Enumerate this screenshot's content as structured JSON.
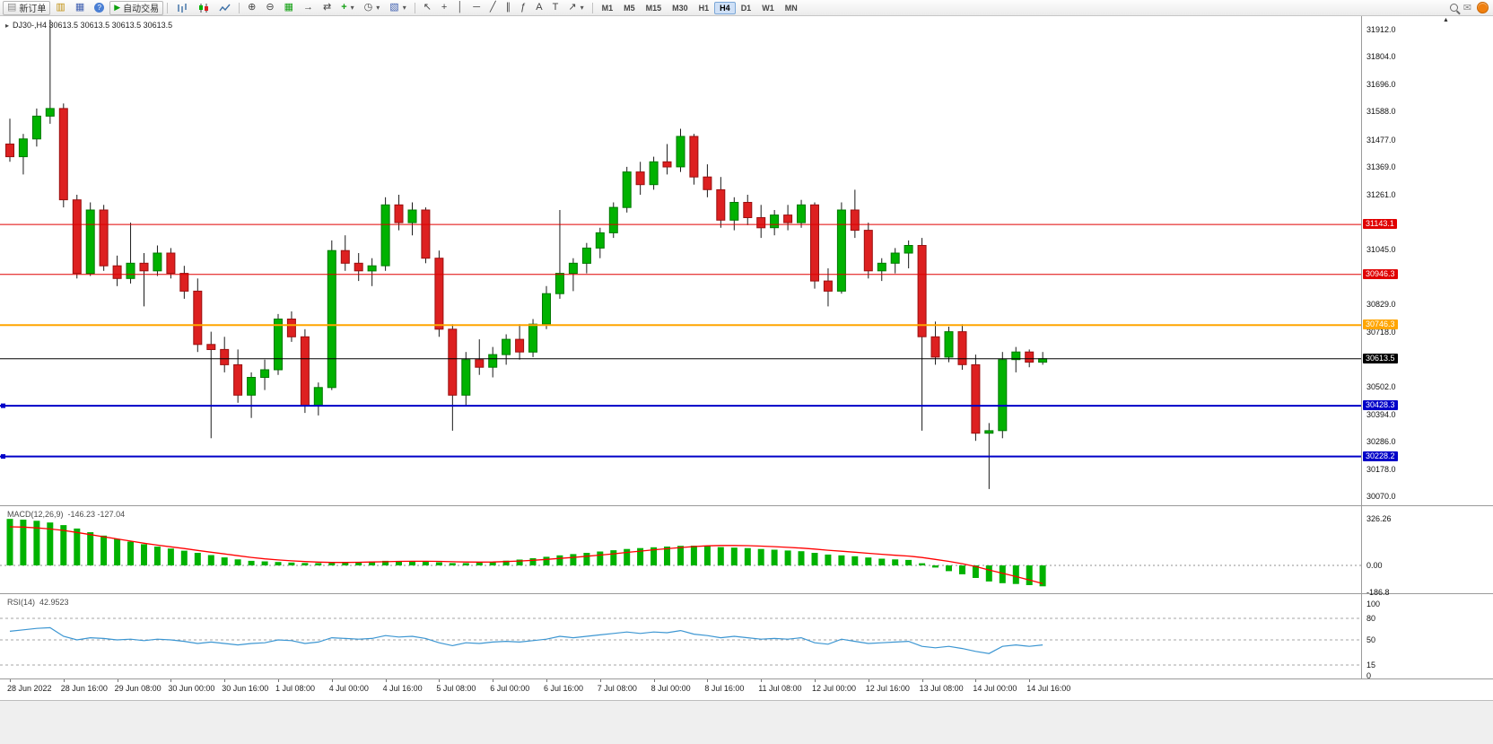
{
  "toolbar": {
    "new_order_label": "新订单",
    "auto_trading_label": "自动交易",
    "timeframes": [
      "M1",
      "M5",
      "M15",
      "M30",
      "H1",
      "H4",
      "D1",
      "W1",
      "MN"
    ],
    "active_timeframe": "H4"
  },
  "icons": {
    "title_marker": "▸",
    "new_order": "▤",
    "market_watch": "▥",
    "navigator": "▦",
    "help": "?",
    "auto_play": "▶",
    "zoom_in": "⊕",
    "zoom_out": "⊖",
    "tile_windows": "▦",
    "auto_scroll": "→",
    "chart_shift": "⇄",
    "indicators_plus": "+",
    "periods_clock": "◷",
    "templates": "▧",
    "dropdown_caret": "▾",
    "cursor": "↖",
    "crosshair": "+",
    "vertical_line": "│",
    "horizontal_line": "─",
    "trendline": "╱",
    "channel": "∥",
    "fibonacci": "ƒ",
    "text_tool": "A",
    "label_tool": "T",
    "arrows_tool": "↗",
    "envelope": "✉",
    "scroll_marker": "▲"
  },
  "chart": {
    "symbol": "DJ30-",
    "period": "H4",
    "title": "DJ30-,H4  30613.5 30613.5 30613.5 30613.5"
  },
  "colors": {
    "up": "#00b200",
    "up_border": "#007800",
    "down": "#dd2020",
    "down_border": "#9a1010",
    "wick": "#1a1a1a",
    "macd_bar": "#00b200",
    "macd_signal": "#ff0000",
    "rsi_line": "#3c96d2",
    "level_red": "#e00000",
    "level_orange": "#ffa500",
    "level_blue": "#0000c8",
    "level_black": "#000000"
  },
  "chart_data": {
    "type": "candlestick",
    "symbol": "DJ30-",
    "period": "H4",
    "price_range": {
      "max": 31950,
      "min": 30050
    },
    "price_axis_ticks": [
      "31912.0",
      "31804.0",
      "31696.0",
      "31588.0",
      "31477.0",
      "31369.0",
      "31261.0",
      "31045.0",
      "30829.0",
      "30718.0",
      "30502.0",
      "30394.0",
      "30286.0",
      "30178.0",
      "30070.0"
    ],
    "levels": [
      {
        "price": 31143.1,
        "badge": "31143.1",
        "color": "#e00000",
        "width": 1,
        "marker": false
      },
      {
        "price": 30946.3,
        "badge": "30946.3",
        "color": "#e00000",
        "width": 1,
        "marker": false
      },
      {
        "price": 30746.3,
        "badge": "30746.3",
        "color": "#ffa500",
        "width": 2,
        "marker": false
      },
      {
        "price": 30613.5,
        "badge": "30613.5",
        "color": "#000000",
        "width": 1,
        "marker": false
      },
      {
        "price": 30428.3,
        "badge": "30428.3",
        "color": "#0000c8",
        "width": 2,
        "marker": true
      },
      {
        "price": 30228.2,
        "badge": "30228.2",
        "color": "#0000c8",
        "width": 2,
        "marker": true
      }
    ],
    "candles": [
      [
        31460,
        31560,
        31390,
        31410
      ],
      [
        31410,
        31500,
        31340,
        31480
      ],
      [
        31480,
        31600,
        31450,
        31570
      ],
      [
        31570,
        31950,
        31540,
        31600
      ],
      [
        31600,
        31620,
        31210,
        31240
      ],
      [
        31240,
        31260,
        30930,
        30950
      ],
      [
        30950,
        31230,
        30940,
        31200
      ],
      [
        31200,
        31220,
        30960,
        30980
      ],
      [
        30980,
        31020,
        30900,
        30930
      ],
      [
        30930,
        31150,
        30910,
        30990
      ],
      [
        30990,
        31030,
        30820,
        30960
      ],
      [
        30960,
        31060,
        30940,
        31030
      ],
      [
        31030,
        31050,
        30930,
        30950
      ],
      [
        30950,
        30980,
        30850,
        30880
      ],
      [
        30880,
        30930,
        30640,
        30670
      ],
      [
        30670,
        30720,
        30300,
        30650
      ],
      [
        30650,
        30700,
        30560,
        30590
      ],
      [
        30590,
        30650,
        30440,
        30470
      ],
      [
        30470,
        30560,
        30380,
        30540
      ],
      [
        30540,
        30610,
        30490,
        30570
      ],
      [
        30570,
        30790,
        30550,
        30770
      ],
      [
        30770,
        30800,
        30680,
        30700
      ],
      [
        30700,
        30730,
        30400,
        30430
      ],
      [
        30430,
        30520,
        30390,
        30500
      ],
      [
        30500,
        31080,
        30490,
        31040
      ],
      [
        31040,
        31100,
        30960,
        30990
      ],
      [
        30990,
        31030,
        30920,
        30960
      ],
      [
        30960,
        31010,
        30900,
        30980
      ],
      [
        30980,
        31250,
        30960,
        31220
      ],
      [
        31220,
        31260,
        31120,
        31150
      ],
      [
        31150,
        31230,
        31100,
        31200
      ],
      [
        31200,
        31210,
        30990,
        31010
      ],
      [
        31010,
        31040,
        30700,
        30730
      ],
      [
        30730,
        30750,
        30330,
        30470
      ],
      [
        30470,
        30640,
        30430,
        30610
      ],
      [
        30610,
        30690,
        30550,
        30580
      ],
      [
        30580,
        30660,
        30540,
        30630
      ],
      [
        30630,
        30710,
        30590,
        30690
      ],
      [
        30690,
        30750,
        30610,
        30640
      ],
      [
        30640,
        30770,
        30620,
        30750
      ],
      [
        30750,
        30900,
        30730,
        30870
      ],
      [
        30870,
        31200,
        30850,
        30950
      ],
      [
        30950,
        31010,
        30880,
        30990
      ],
      [
        30990,
        31070,
        30950,
        31050
      ],
      [
        31050,
        31130,
        31010,
        31110
      ],
      [
        31110,
        31230,
        31090,
        31210
      ],
      [
        31210,
        31370,
        31190,
        31350
      ],
      [
        31350,
        31390,
        31260,
        31300
      ],
      [
        31300,
        31410,
        31280,
        31390
      ],
      [
        31390,
        31460,
        31340,
        31370
      ],
      [
        31370,
        31520,
        31350,
        31490
      ],
      [
        31490,
        31500,
        31300,
        31330
      ],
      [
        31330,
        31380,
        31250,
        31280
      ],
      [
        31280,
        31330,
        31130,
        31160
      ],
      [
        31160,
        31250,
        31120,
        31230
      ],
      [
        31230,
        31260,
        31140,
        31170
      ],
      [
        31170,
        31220,
        31090,
        31130
      ],
      [
        31130,
        31200,
        31100,
        31180
      ],
      [
        31180,
        31220,
        31120,
        31150
      ],
      [
        31150,
        31240,
        31130,
        31220
      ],
      [
        31220,
        31230,
        30890,
        30920
      ],
      [
        30920,
        30970,
        30820,
        30880
      ],
      [
        30880,
        31230,
        30870,
        31200
      ],
      [
        31200,
        31280,
        31090,
        31120
      ],
      [
        31120,
        31150,
        30930,
        30960
      ],
      [
        30960,
        31010,
        30920,
        30990
      ],
      [
        30990,
        31050,
        30950,
        31030
      ],
      [
        31030,
        31080,
        30970,
        31060
      ],
      [
        31060,
        31090,
        30330,
        30700
      ],
      [
        30700,
        30760,
        30590,
        30620
      ],
      [
        30620,
        30740,
        30600,
        30720
      ],
      [
        30720,
        30750,
        30570,
        30590
      ],
      [
        30590,
        30630,
        30290,
        30320
      ],
      [
        30320,
        30360,
        30100,
        30330
      ],
      [
        30330,
        30640,
        30300,
        30610
      ],
      [
        30610,
        30660,
        30560,
        30640
      ],
      [
        30640,
        30650,
        30580,
        30600
      ],
      [
        30600,
        30640,
        30590,
        30613.5
      ]
    ],
    "time_labels": [
      {
        "index": 0,
        "label": "28 Jun 2022"
      },
      {
        "index": 4,
        "label": "28 Jun 16:00"
      },
      {
        "index": 8,
        "label": "29 Jun 08:00"
      },
      {
        "index": 12,
        "label": "30 Jun 00:00"
      },
      {
        "index": 16,
        "label": "30 Jun 16:00"
      },
      {
        "index": 20,
        "label": "1 Jul 08:00"
      },
      {
        "index": 24,
        "label": "4 Jul 00:00"
      },
      {
        "index": 28,
        "label": "4 Jul 16:00"
      },
      {
        "index": 32,
        "label": "5 Jul 08:00"
      },
      {
        "index": 36,
        "label": "6 Jul 00:00"
      },
      {
        "index": 40,
        "label": "6 Jul 16:00"
      },
      {
        "index": 44,
        "label": "7 Jul 08:00"
      },
      {
        "index": 48,
        "label": "8 Jul 00:00"
      },
      {
        "index": 52,
        "label": "8 Jul 16:00"
      },
      {
        "index": 56,
        "label": "11 Jul 08:00"
      },
      {
        "index": 60,
        "label": "12 Jul 00:00"
      },
      {
        "index": 64,
        "label": "12 Jul 16:00"
      },
      {
        "index": 68,
        "label": "13 Jul 08:00"
      },
      {
        "index": 72,
        "label": "14 Jul 00:00"
      },
      {
        "index": 76,
        "label": "14 Jul 16:00"
      }
    ],
    "macd": {
      "label": "MACD(12,26,9)",
      "values_text": "-146.23 -127.04",
      "axis_ticks": [
        {
          "label": "326.26",
          "value": 326.26
        },
        {
          "label": "0.00",
          "value": 0
        },
        {
          "label": "-186.8",
          "value": -186.8
        }
      ],
      "histogram": [
        325,
        320,
        312,
        300,
        282,
        258,
        232,
        208,
        186,
        166,
        148,
        132,
        118,
        103,
        88,
        72,
        56,
        42,
        32,
        28,
        24,
        20,
        17,
        16,
        18,
        22,
        25,
        28,
        32,
        31,
        29,
        27,
        22,
        16,
        16,
        20,
        26,
        33,
        41,
        50,
        60,
        70,
        79,
        88,
        97,
        106,
        115,
        121,
        127,
        132,
        137,
        138,
        135,
        128,
        124,
        121,
        115,
        110,
        104,
        99,
        88,
        76,
        70,
        64,
        55,
        47,
        42,
        38,
        15,
        -15,
        -40,
        -62,
        -88,
        -112,
        -124,
        -130,
        -138,
        -146.23
      ],
      "signal": [
        270,
        268,
        262,
        255,
        245,
        230,
        215,
        200,
        185,
        170,
        155,
        142,
        130,
        118,
        105,
        92,
        80,
        68,
        56,
        46,
        38,
        32,
        27,
        23,
        21,
        21,
        22,
        24,
        26,
        28,
        29,
        29,
        28,
        26,
        24,
        23,
        24,
        27,
        31,
        36,
        42,
        49,
        56,
        64,
        72,
        81,
        91,
        100,
        109,
        117,
        125,
        132,
        137,
        139,
        139,
        138,
        135,
        131,
        126,
        121,
        114,
        106,
        99,
        92,
        85,
        78,
        71,
        65,
        55,
        42,
        28,
        12,
        -8,
        -32,
        -55,
        -78,
        -102,
        -127.04
      ]
    },
    "rsi": {
      "label": "RSI(14)",
      "value_text": "42.9523",
      "axis_ticks": [
        {
          "label": "100",
          "value": 100
        },
        {
          "label": "80",
          "value": 80
        },
        {
          "label": "50",
          "value": 50
        },
        {
          "label": "15",
          "value": 15
        },
        {
          "label": "0",
          "value": 0
        }
      ],
      "levels": [
        80,
        50,
        15
      ],
      "values": [
        62,
        64,
        66,
        67,
        55,
        50,
        53,
        52,
        50,
        51,
        49,
        51,
        50,
        48,
        45,
        47,
        45,
        43,
        45,
        46,
        50,
        49,
        45,
        47,
        53,
        52,
        51,
        52,
        56,
        54,
        55,
        52,
        46,
        42,
        46,
        45,
        47,
        48,
        47,
        49,
        51,
        55,
        53,
        55,
        57,
        59,
        61,
        59,
        61,
        60,
        63,
        58,
        56,
        53,
        55,
        53,
        51,
        52,
        51,
        53,
        46,
        44,
        51,
        48,
        45,
        46,
        47,
        48,
        41,
        39,
        41,
        38,
        34,
        31,
        41,
        43,
        41,
        42.95
      ]
    }
  }
}
